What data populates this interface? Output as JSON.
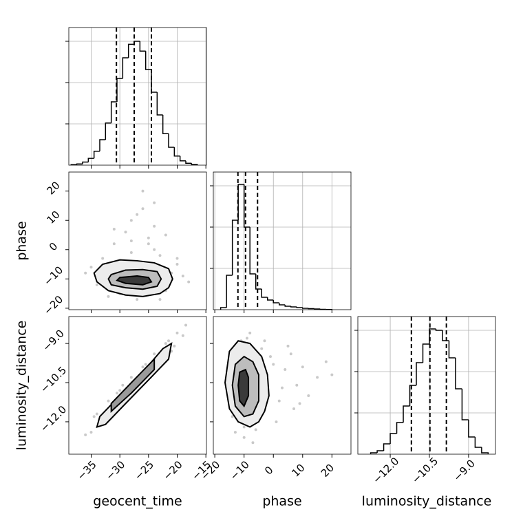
{
  "chart_data": {
    "type": "corner",
    "line_color": "#000000",
    "grid_color": "#b0b0b0",
    "point_color": "#777777",
    "grid": true,
    "parameters": [
      {
        "name": "geocent_time",
        "lim": [
          -38.9,
          -14.9
        ],
        "ticks": [
          {
            "value": -35,
            "label": "−35"
          },
          {
            "value": -30,
            "label": "−30"
          },
          {
            "value": -25,
            "label": "−25"
          },
          {
            "value": -20,
            "label": "−20"
          },
          {
            "value": -15,
            "label": "−15"
          }
        ]
      },
      {
        "name": "phase",
        "lim": [
          -20.5,
          26.5
        ],
        "ticks": [
          {
            "value": -20,
            "label": "−20"
          },
          {
            "value": -10,
            "label": "−10"
          },
          0,
          10,
          20
        ]
      },
      {
        "name": "luminosity_distance",
        "lim": [
          -13.24,
          -7.97
        ],
        "ticks": [
          {
            "value": -12.0,
            "label": "−12.0"
          },
          {
            "value": -10.5,
            "label": "−10.5"
          },
          {
            "value": -9.0,
            "label": "−9.0"
          }
        ]
      }
    ],
    "histogram_ylim": [
      0,
      2000
    ],
    "histogram_yticks": [
      600,
      1200,
      1800
    ],
    "histograms": [
      {
        "bins": [
          -38.5,
          -37.5,
          -36.5,
          -35.5,
          -34.5,
          -33.5,
          -32.5,
          -31.5,
          -30.5,
          -29.5,
          -28.5,
          -27.5,
          -26.5,
          -25.5,
          -24.5,
          -23.5,
          -22.5,
          -21.5,
          -20.5,
          -19.5,
          -18.5,
          -17.5,
          -16.5
        ],
        "counts": [
          7,
          18,
          45,
          99,
          202,
          370,
          612,
          920,
          1260,
          1560,
          1756,
          1800,
          1658,
          1390,
          1060,
          730,
          457,
          260,
          133,
          63,
          27,
          10
        ],
        "quantiles": [
          -30.6,
          -27.5,
          -24.5
        ]
      },
      {
        "bins": [
          -18,
          -16,
          -14,
          -12,
          -10,
          -8,
          -6,
          -4,
          -2,
          0,
          2,
          4,
          6,
          8,
          10,
          12,
          14,
          16,
          18,
          20
        ],
        "counts": [
          30,
          500,
          1300,
          1820,
          1200,
          520,
          300,
          180,
          140,
          100,
          70,
          50,
          40,
          30,
          20,
          15,
          10,
          5,
          3
        ],
        "quantiles": [
          -12.1,
          -9.5,
          -5.4
        ]
      },
      {
        "bins": [
          -12.75,
          -12.5,
          -12.25,
          -12.0,
          -11.75,
          -11.5,
          -11.25,
          -11.0,
          -10.75,
          -10.5,
          -10.25,
          -10.0,
          -9.75,
          -9.5,
          -9.25,
          -9.0,
          -8.75,
          -8.5,
          -8.25
        ],
        "counts": [
          20,
          50,
          150,
          300,
          460,
          700,
          1000,
          1330,
          1600,
          1820,
          1800,
          1650,
          1400,
          950,
          500,
          250,
          100,
          20
        ],
        "quantiles": [
          -11.19,
          -10.48,
          -9.85
        ]
      }
    ],
    "pairs": [
      {
        "points": {
          "x": [
            -36,
            -34,
            -33,
            -31,
            -30,
            -29,
            -28,
            -27,
            -26,
            -25,
            -24,
            -23,
            -22,
            -21,
            -20,
            -19,
            -18,
            -35,
            -32,
            -28,
            -26,
            -24,
            -30,
            -27,
            -25,
            -22,
            -29,
            -31,
            -23,
            -20,
            -27,
            -26,
            -33,
            -24,
            -28,
            -25
          ],
          "y": [
            -8,
            -12,
            -3,
            2,
            -15,
            6,
            10,
            -17,
            14,
            4,
            0,
            -2,
            -14,
            -8,
            -5,
            -9,
            -11,
            -6,
            -16,
            -1,
            20,
            8,
            -4,
            -6,
            2,
            5,
            -13,
            7,
            -17,
            -3,
            12,
            -9,
            -10,
            16,
            3,
            -14
          ]
        },
        "contours": [
          {
            "fill": "#ececec",
            "x": [
              -34.5,
              -33,
              -30,
              -27,
              -24,
              -21.5,
              -20.8,
              -21.5,
              -23,
              -26,
              -29,
              -32,
              -34,
              -34.5
            ],
            "y": [
              -8,
              -5,
              -3.5,
              -3.8,
              -4.5,
              -6.5,
              -10,
              -13,
              -15,
              -16,
              -15.5,
              -14,
              -11,
              -8
            ]
          },
          {
            "fill": "#bdbdbd",
            "x": [
              -31.5,
              -29,
              -26,
              -23.5,
              -22.8,
              -23.5,
              -26,
              -29,
              -31.5,
              -32,
              -31.5
            ],
            "y": [
              -8.5,
              -7,
              -6.8,
              -7.5,
              -10,
              -12.5,
              -13.5,
              -13,
              -12,
              -10,
              -8.5
            ]
          },
          {
            "fill": "#3a3a3a",
            "x": [
              -30,
              -27,
              -25,
              -24.5,
              -26,
              -29,
              -30.5,
              -30
            ],
            "y": [
              -9.5,
              -9,
              -9.5,
              -11,
              -12,
              -11.5,
              -10.5,
              -9.5
            ]
          }
        ]
      },
      {
        "points": {
          "x": [
            -35,
            -34,
            -33,
            -32,
            -31,
            -30,
            -29,
            -28,
            -27,
            -26,
            -25,
            -24,
            -23,
            -22,
            -21,
            -20,
            -19,
            -34.5,
            -31.5,
            -29.5,
            -27.5,
            -25.5,
            -23.5,
            -21.5,
            -20.5,
            -36,
            -18.5,
            -26.5,
            -30.5,
            -22.5
          ],
          "y": [
            -12.4,
            -11.7,
            -12.0,
            -11.2,
            -11.5,
            -10.8,
            -11.1,
            -10.3,
            -10.6,
            -9.9,
            -10.2,
            -9.4,
            -9.7,
            -9.0,
            -9.3,
            -8.6,
            -8.7,
            -11.8,
            -11.6,
            -10.6,
            -10.7,
            -9.8,
            -9.8,
            -8.9,
            -9.1,
            -12.5,
            -8.3,
            -10.4,
            -10.9,
            -9.5
          ]
        },
        "contours": [
          {
            "fill": "#ececec",
            "x": [
              -33.5,
              -30,
              -26,
              -22.5,
              -21,
              -21.5,
              -25,
              -29,
              -32.5,
              -34,
              -33.5
            ],
            "y": [
              -11.8,
              -11.0,
              -10.1,
              -9.2,
              -9.0,
              -9.6,
              -10.4,
              -11.3,
              -12.1,
              -12.2,
              -11.8
            ]
          },
          {
            "fill": "#9a9a9a",
            "x": [
              -31.5,
              -28,
              -24,
              -24,
              -28,
              -31.5,
              -31.5
            ],
            "y": [
              -11.3,
              -10.5,
              -9.6,
              -10.0,
              -10.9,
              -11.6,
              -11.3
            ]
          }
        ]
      },
      {
        "points": {
          "x": [
            -16,
            -14,
            -12,
            -10,
            -8,
            -6,
            -4,
            -2,
            0,
            2,
            4,
            6,
            8,
            10,
            12,
            15,
            18,
            -13,
            -9,
            -5,
            -1,
            3,
            7,
            -11,
            -7,
            -3,
            1,
            5,
            -15,
            -6,
            9,
            20,
            -10,
            -4
          ],
          "y": [
            -10.5,
            -11.8,
            -9.0,
            -12.6,
            -8.6,
            -12.3,
            -9.2,
            -10.8,
            -9.8,
            -11.2,
            -10.0,
            -9.4,
            -10.6,
            -9.9,
            -11.0,
            -10.3,
            -9.7,
            -12.4,
            -8.8,
            -11.9,
            -9.5,
            -10.7,
            -11.5,
            -8.9,
            -12.8,
            -8.9,
            -12.0,
            -9.1,
            -9.8,
            -10.0,
            -11.3,
            -10.2,
            -12.2,
            -10.4
          ]
        },
        "contours": [
          {
            "fill": "#ececec",
            "x": [
              -15,
              -12,
              -8,
              -4,
              -2,
              -1.5,
              -3,
              -5,
              -8,
              -12,
              -15,
              -16.5,
              -15
            ],
            "y": [
              -9.3,
              -8.9,
              -9.0,
              -9.5,
              -10.2,
              -11.0,
              -11.6,
              -12.0,
              -12.2,
              -12.0,
              -11.5,
              -10.5,
              -9.3
            ]
          },
          {
            "fill": "#bdbdbd",
            "x": [
              -13,
              -10,
              -7,
              -5,
              -5,
              -7,
              -10,
              -13,
              -14,
              -13
            ],
            "y": [
              -9.8,
              -9.5,
              -9.7,
              -10.2,
              -11.2,
              -11.7,
              -11.8,
              -11.4,
              -10.6,
              -9.8
            ]
          },
          {
            "fill": "#3a3a3a",
            "x": [
              -11.5,
              -9.5,
              -8.5,
              -8.5,
              -10,
              -11.5,
              -12,
              -11.5
            ],
            "y": [
              -10.1,
              -10.0,
              -10.3,
              -11.0,
              -11.4,
              -11.2,
              -10.6,
              -10.1
            ]
          }
        ]
      }
    ]
  }
}
